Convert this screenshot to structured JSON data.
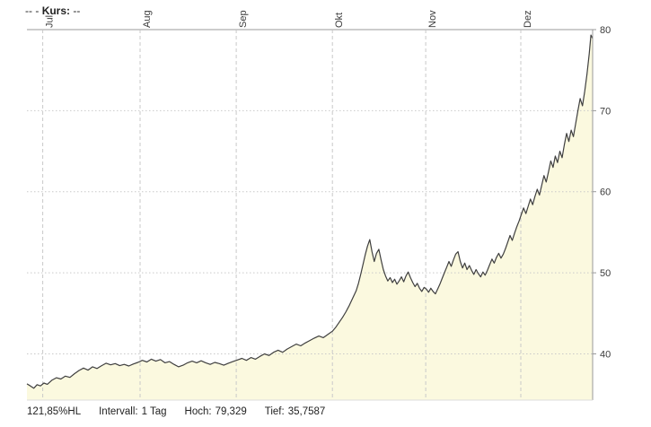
{
  "legend": {
    "date_placeholder": "--",
    "separator": "-",
    "label": "Kurs:",
    "value_placeholder": "--"
  },
  "footer": {
    "performance": "121,85%HL",
    "stats": [
      {
        "label": "Intervall:",
        "value": "1 Tag"
      },
      {
        "label": "Hoch:",
        "value": "79,329"
      },
      {
        "label": "Tief:",
        "value": "35,7587"
      }
    ]
  },
  "chart_data": {
    "type": "area",
    "series_name": "Kurs",
    "interval": "1 Tag",
    "high": 79.329,
    "low": 35.7587,
    "ylim": [
      34.3,
      80
    ],
    "yticks": [
      40,
      50,
      60,
      70,
      80
    ],
    "grid": true,
    "legend_position": "top-left",
    "colors": {
      "area_fill": "#FBF9DF",
      "line": "#3f3f3f",
      "grid": "#c9c9c9",
      "axis": "#999999",
      "text": "#3a3a3a"
    },
    "x_months": [
      {
        "label": "Jul",
        "pos": 0.028
      },
      {
        "label": "Aug",
        "pos": 0.2
      },
      {
        "label": "Sep",
        "pos": 0.37
      },
      {
        "label": "Okt",
        "pos": 0.54
      },
      {
        "label": "Nov",
        "pos": 0.705
      },
      {
        "label": "Dez",
        "pos": 0.873
      }
    ],
    "series": [
      {
        "name": "Kurs",
        "points": [
          [
            0.0,
            36.3
          ],
          [
            0.006,
            36.05
          ],
          [
            0.012,
            35.76
          ],
          [
            0.018,
            36.2
          ],
          [
            0.024,
            36.05
          ],
          [
            0.03,
            36.4
          ],
          [
            0.036,
            36.25
          ],
          [
            0.044,
            36.75
          ],
          [
            0.052,
            37.05
          ],
          [
            0.06,
            36.9
          ],
          [
            0.068,
            37.25
          ],
          [
            0.076,
            37.1
          ],
          [
            0.084,
            37.55
          ],
          [
            0.092,
            37.95
          ],
          [
            0.1,
            38.25
          ],
          [
            0.108,
            38.0
          ],
          [
            0.116,
            38.4
          ],
          [
            0.124,
            38.2
          ],
          [
            0.132,
            38.55
          ],
          [
            0.14,
            38.85
          ],
          [
            0.148,
            38.65
          ],
          [
            0.156,
            38.8
          ],
          [
            0.164,
            38.55
          ],
          [
            0.172,
            38.7
          ],
          [
            0.18,
            38.5
          ],
          [
            0.188,
            38.75
          ],
          [
            0.196,
            38.95
          ],
          [
            0.204,
            39.2
          ],
          [
            0.212,
            39.0
          ],
          [
            0.22,
            39.35
          ],
          [
            0.228,
            39.1
          ],
          [
            0.236,
            39.3
          ],
          [
            0.244,
            38.9
          ],
          [
            0.252,
            39.05
          ],
          [
            0.26,
            38.7
          ],
          [
            0.268,
            38.4
          ],
          [
            0.276,
            38.6
          ],
          [
            0.284,
            38.9
          ],
          [
            0.292,
            39.1
          ],
          [
            0.3,
            38.9
          ],
          [
            0.308,
            39.15
          ],
          [
            0.316,
            38.9
          ],
          [
            0.324,
            38.7
          ],
          [
            0.332,
            38.95
          ],
          [
            0.34,
            38.8
          ],
          [
            0.348,
            38.6
          ],
          [
            0.356,
            38.85
          ],
          [
            0.364,
            39.05
          ],
          [
            0.372,
            39.25
          ],
          [
            0.38,
            39.45
          ],
          [
            0.388,
            39.2
          ],
          [
            0.396,
            39.55
          ],
          [
            0.404,
            39.35
          ],
          [
            0.412,
            39.7
          ],
          [
            0.42,
            40.0
          ],
          [
            0.428,
            39.8
          ],
          [
            0.436,
            40.2
          ],
          [
            0.444,
            40.45
          ],
          [
            0.452,
            40.2
          ],
          [
            0.46,
            40.6
          ],
          [
            0.468,
            40.9
          ],
          [
            0.476,
            41.2
          ],
          [
            0.484,
            41.0
          ],
          [
            0.492,
            41.35
          ],
          [
            0.5,
            41.65
          ],
          [
            0.508,
            41.95
          ],
          [
            0.516,
            42.2
          ],
          [
            0.524,
            42.0
          ],
          [
            0.532,
            42.4
          ],
          [
            0.54,
            42.8
          ],
          [
            0.546,
            43.3
          ],
          [
            0.552,
            43.9
          ],
          [
            0.558,
            44.5
          ],
          [
            0.564,
            45.2
          ],
          [
            0.57,
            46.0
          ],
          [
            0.576,
            46.9
          ],
          [
            0.582,
            47.8
          ],
          [
            0.586,
            48.7
          ],
          [
            0.59,
            49.8
          ],
          [
            0.594,
            51.0
          ],
          [
            0.598,
            52.2
          ],
          [
            0.602,
            53.3
          ],
          [
            0.606,
            54.1
          ],
          [
            0.61,
            52.6
          ],
          [
            0.614,
            51.4
          ],
          [
            0.618,
            52.4
          ],
          [
            0.622,
            52.9
          ],
          [
            0.626,
            51.6
          ],
          [
            0.63,
            50.4
          ],
          [
            0.634,
            49.6
          ],
          [
            0.638,
            49.0
          ],
          [
            0.642,
            49.4
          ],
          [
            0.646,
            48.8
          ],
          [
            0.65,
            49.2
          ],
          [
            0.654,
            48.6
          ],
          [
            0.658,
            49.0
          ],
          [
            0.662,
            49.5
          ],
          [
            0.666,
            48.9
          ],
          [
            0.67,
            49.6
          ],
          [
            0.674,
            50.1
          ],
          [
            0.678,
            49.4
          ],
          [
            0.682,
            48.8
          ],
          [
            0.686,
            48.3
          ],
          [
            0.69,
            48.7
          ],
          [
            0.694,
            48.1
          ],
          [
            0.698,
            47.7
          ],
          [
            0.702,
            48.2
          ],
          [
            0.706,
            48.0
          ],
          [
            0.71,
            47.6
          ],
          [
            0.714,
            48.1
          ],
          [
            0.718,
            47.7
          ],
          [
            0.722,
            47.4
          ],
          [
            0.726,
            48.0
          ],
          [
            0.73,
            48.6
          ],
          [
            0.734,
            49.3
          ],
          [
            0.738,
            50.0
          ],
          [
            0.742,
            50.7
          ],
          [
            0.746,
            51.4
          ],
          [
            0.75,
            50.8
          ],
          [
            0.754,
            51.6
          ],
          [
            0.758,
            52.3
          ],
          [
            0.762,
            52.6
          ],
          [
            0.766,
            51.4
          ],
          [
            0.77,
            50.6
          ],
          [
            0.774,
            51.2
          ],
          [
            0.778,
            50.4
          ],
          [
            0.782,
            50.9
          ],
          [
            0.786,
            50.3
          ],
          [
            0.79,
            49.8
          ],
          [
            0.794,
            50.4
          ],
          [
            0.798,
            49.9
          ],
          [
            0.802,
            49.5
          ],
          [
            0.806,
            50.1
          ],
          [
            0.81,
            49.7
          ],
          [
            0.814,
            50.3
          ],
          [
            0.818,
            51.0
          ],
          [
            0.822,
            51.7
          ],
          [
            0.826,
            51.2
          ],
          [
            0.83,
            51.9
          ],
          [
            0.834,
            52.4
          ],
          [
            0.838,
            51.8
          ],
          [
            0.842,
            52.3
          ],
          [
            0.846,
            53.0
          ],
          [
            0.85,
            53.8
          ],
          [
            0.854,
            54.6
          ],
          [
            0.858,
            54.0
          ],
          [
            0.862,
            54.9
          ],
          [
            0.866,
            55.7
          ],
          [
            0.87,
            56.4
          ],
          [
            0.874,
            57.2
          ],
          [
            0.878,
            58.0
          ],
          [
            0.882,
            57.3
          ],
          [
            0.886,
            58.2
          ],
          [
            0.89,
            59.1
          ],
          [
            0.894,
            58.4
          ],
          [
            0.898,
            59.4
          ],
          [
            0.902,
            60.3
          ],
          [
            0.906,
            59.6
          ],
          [
            0.91,
            60.8
          ],
          [
            0.914,
            62.0
          ],
          [
            0.918,
            61.2
          ],
          [
            0.922,
            62.5
          ],
          [
            0.926,
            63.8
          ],
          [
            0.93,
            63.0
          ],
          [
            0.934,
            64.4
          ],
          [
            0.938,
            63.6
          ],
          [
            0.942,
            65.0
          ],
          [
            0.946,
            64.2
          ],
          [
            0.95,
            65.8
          ],
          [
            0.954,
            67.2
          ],
          [
            0.958,
            66.2
          ],
          [
            0.962,
            67.6
          ],
          [
            0.966,
            66.8
          ],
          [
            0.97,
            68.4
          ],
          [
            0.974,
            70.0
          ],
          [
            0.978,
            71.5
          ],
          [
            0.982,
            70.6
          ],
          [
            0.986,
            72.4
          ],
          [
            0.99,
            74.5
          ],
          [
            0.994,
            77.0
          ],
          [
            0.997,
            79.33
          ],
          [
            1.0,
            78.9
          ]
        ]
      }
    ]
  }
}
